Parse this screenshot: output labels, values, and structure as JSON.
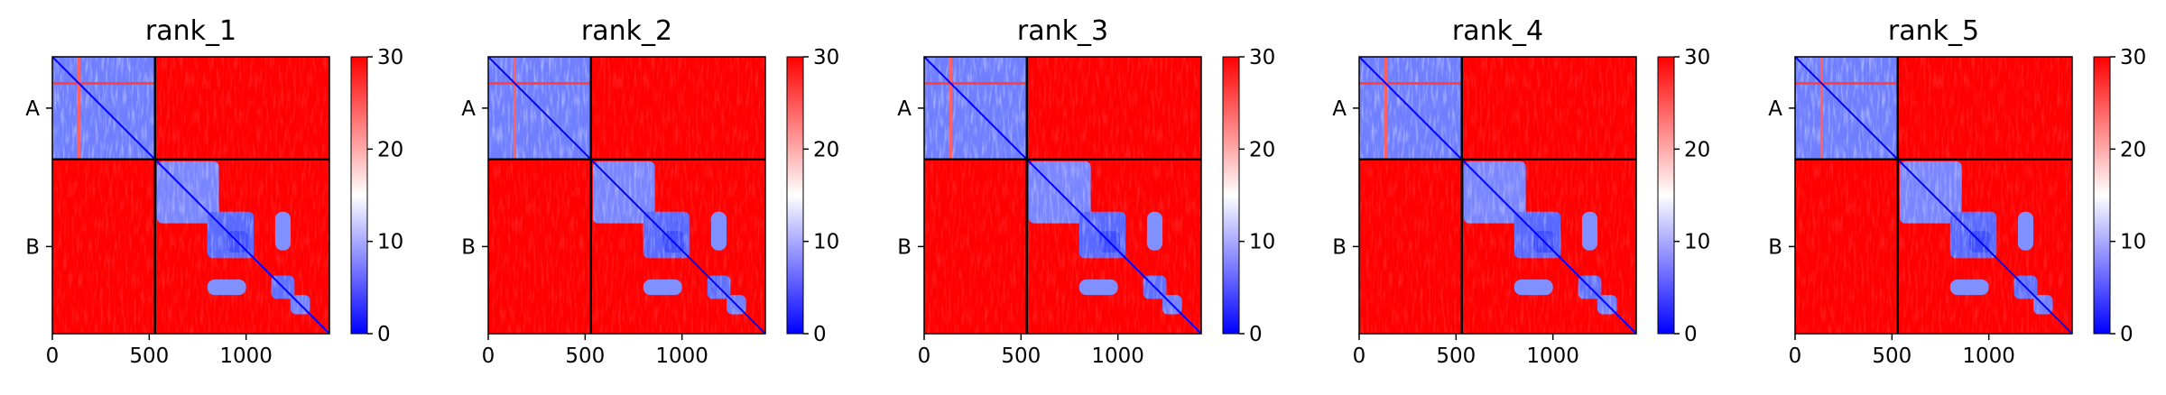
{
  "chart_data": {
    "type": "heatmap",
    "colormap": {
      "low": "#0000ff",
      "mid": "#ffffff",
      "high": "#ff0000"
    },
    "colorbar": {
      "range": [
        0,
        30
      ],
      "ticks": [
        "0",
        "10",
        "20",
        "30"
      ]
    },
    "x_ticks": [
      {
        "value": 0,
        "label": "0"
      },
      {
        "value": 500,
        "label": "500"
      },
      {
        "value": 1000,
        "label": "1000"
      }
    ],
    "x_range": [
      0,
      1430
    ],
    "chain_boundary": 530,
    "chains": [
      {
        "label": "A",
        "start": 0,
        "end": 530
      },
      {
        "label": "B",
        "start": 530,
        "end": 1430
      }
    ],
    "panels": [
      {
        "title": "rank_1"
      },
      {
        "title": "rank_2"
      },
      {
        "title": "rank_3"
      },
      {
        "title": "rank_4"
      },
      {
        "title": "rank_5"
      }
    ]
  }
}
